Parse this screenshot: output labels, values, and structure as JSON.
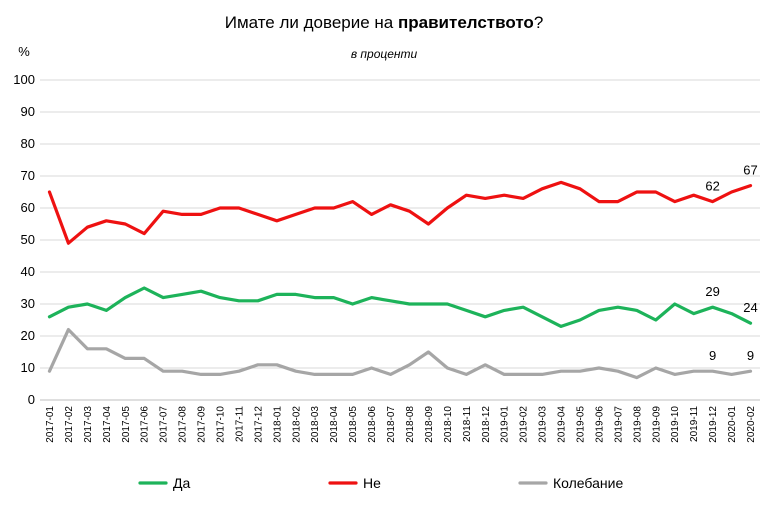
{
  "chart_data": {
    "type": "line",
    "title_prefix": "Имате ли доверие на ",
    "title_bold": "правителството",
    "title_suffix": "?",
    "subtitle": "в проценти",
    "ylabel": "%",
    "ylim": [
      0,
      100
    ],
    "yticks": [
      0,
      10,
      20,
      30,
      40,
      50,
      60,
      70,
      80,
      90,
      100
    ],
    "grid": true,
    "legend_position": "bottom",
    "categories": [
      "2017-01",
      "2017-02",
      "2017-03",
      "2017-04",
      "2017-05",
      "2017-06",
      "2017-07",
      "2017-08",
      "2017-09",
      "2017-10",
      "2017-11",
      "2017-12",
      "2018-01",
      "2018-02",
      "2018-03",
      "2018-04",
      "2018-05",
      "2018-06",
      "2018-07",
      "2018-08",
      "2018-09",
      "2018-10",
      "2018-11",
      "2018-12",
      "2019-01",
      "2019-02",
      "2019-03",
      "2019-04",
      "2019-05",
      "2019-06",
      "2019-07",
      "2019-08",
      "2019-09",
      "2019-10",
      "2019-11",
      "2019-12",
      "2020-01",
      "2020-02"
    ],
    "series": [
      {
        "name": "Не",
        "color": "#ee1111",
        "values": [
          65,
          49,
          54,
          56,
          55,
          52,
          59,
          58,
          58,
          60,
          60,
          58,
          56,
          58,
          60,
          60,
          62,
          58,
          61,
          59,
          55,
          60,
          64,
          63,
          64,
          63,
          66,
          68,
          66,
          62,
          62,
          65,
          65,
          62,
          64,
          62,
          65,
          67
        ],
        "labels": [
          {
            "index": 35,
            "text": "62"
          },
          {
            "index": 37,
            "text": "67"
          }
        ]
      },
      {
        "name": "Да",
        "color": "#1db35a",
        "values": [
          26,
          29,
          30,
          28,
          32,
          35,
          32,
          33,
          34,
          32,
          31,
          31,
          33,
          33,
          32,
          32,
          30,
          32,
          31,
          30,
          30,
          30,
          28,
          26,
          28,
          29,
          26,
          23,
          25,
          28,
          29,
          28,
          25,
          30,
          27,
          29,
          27,
          24
        ],
        "labels": [
          {
            "index": 35,
            "text": "29"
          },
          {
            "index": 37,
            "text": "24"
          }
        ]
      },
      {
        "name": "Колебание",
        "color": "#a6a6a6",
        "values": [
          9,
          22,
          16,
          16,
          13,
          13,
          9,
          9,
          8,
          8,
          9,
          11,
          11,
          9,
          8,
          8,
          8,
          10,
          8,
          11,
          15,
          10,
          8,
          11,
          8,
          8,
          8,
          9,
          9,
          10,
          9,
          7,
          10,
          8,
          9,
          9,
          8,
          9
        ],
        "labels": [
          {
            "index": 35,
            "text": "9"
          },
          {
            "index": 37,
            "text": "9"
          }
        ]
      }
    ],
    "legend_order": [
      "Да",
      "Не",
      "Колебание"
    ]
  }
}
